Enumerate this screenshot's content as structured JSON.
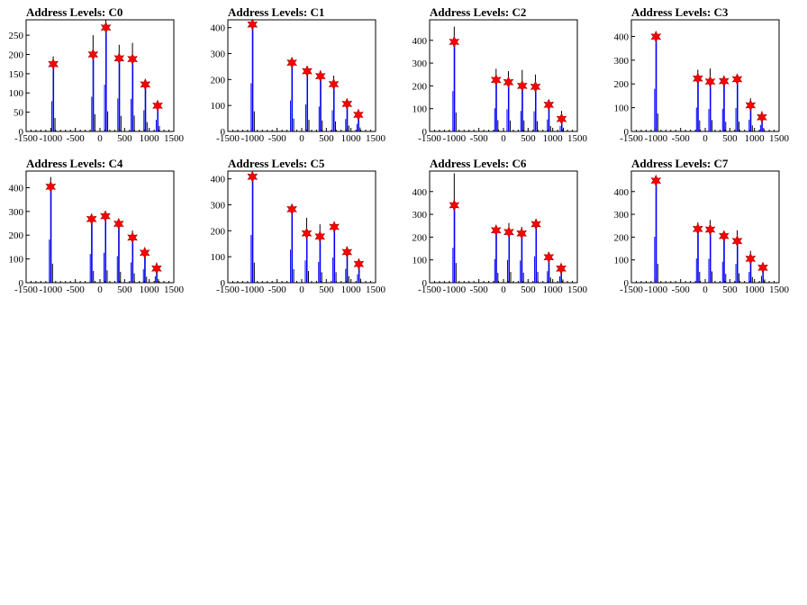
{
  "chart_data": [
    {
      "type": "bar",
      "title": "Address Levels: C0",
      "xlim": [
        -1500,
        1500
      ],
      "ylim": [
        0,
        290
      ],
      "xticks": [
        -1500,
        -1000,
        -500,
        0,
        500,
        1000,
        1500
      ],
      "xtick_labels": [
        "-1500",
        "-1000",
        "-500",
        "0",
        "500",
        "1000",
        "1500"
      ],
      "yticks": [
        0,
        50,
        100,
        150,
        200,
        250
      ],
      "ytick_labels": [
        "0",
        "50",
        "100",
        "150",
        "200",
        "250"
      ],
      "peaks": [
        {
          "x": -950,
          "y": 175
        },
        {
          "x": -140,
          "y": 200
        },
        {
          "x": 120,
          "y": 270
        },
        {
          "x": 390,
          "y": 190
        },
        {
          "x": 660,
          "y": 188
        },
        {
          "x": 920,
          "y": 122
        },
        {
          "x": 1170,
          "y": 67
        }
      ],
      "black_peaks": [
        -950,
        -140,
        120,
        390,
        660,
        920,
        1170
      ],
      "black_heights": [
        195,
        250,
        290,
        225,
        230,
        135,
        80
      ]
    },
    {
      "type": "bar",
      "title": "Address Levels: C1",
      "xlim": [
        -1500,
        1500
      ],
      "ylim": [
        0,
        430
      ],
      "xticks": [
        -1500,
        -1000,
        -500,
        0,
        500,
        1000,
        1500
      ],
      "xtick_labels": [
        "-1500",
        "-1000",
        "-500",
        "0",
        "500",
        "1000",
        "1500"
      ],
      "yticks": [
        0,
        100,
        200,
        300,
        400
      ],
      "ytick_labels": [
        "0",
        "100",
        "200",
        "300",
        "400"
      ],
      "peaks": [
        {
          "x": -1000,
          "y": 412
        },
        {
          "x": -200,
          "y": 265
        },
        {
          "x": 110,
          "y": 232
        },
        {
          "x": 380,
          "y": 213
        },
        {
          "x": 650,
          "y": 182
        },
        {
          "x": 920,
          "y": 106
        },
        {
          "x": 1150,
          "y": 64
        }
      ],
      "black_peaks": [
        -1000,
        -200,
        110,
        380,
        650,
        920,
        1150
      ],
      "black_heights": [
        430,
        275,
        250,
        235,
        215,
        125,
        85
      ]
    },
    {
      "type": "bar",
      "title": "Address Levels: C2",
      "xlim": [
        -1500,
        1500
      ],
      "ylim": [
        0,
        490
      ],
      "xticks": [
        -1500,
        -1000,
        -500,
        0,
        500,
        1000,
        1500
      ],
      "xtick_labels": [
        "-1500",
        "-1000",
        "-500",
        "0",
        "500",
        "1000",
        "1500"
      ],
      "yticks": [
        0,
        100,
        200,
        300,
        400
      ],
      "ytick_labels": [
        "0",
        "100",
        "200",
        "300",
        "400"
      ],
      "peaks": [
        {
          "x": -1000,
          "y": 393
        },
        {
          "x": -150,
          "y": 226
        },
        {
          "x": 100,
          "y": 216
        },
        {
          "x": 380,
          "y": 200
        },
        {
          "x": 650,
          "y": 196
        },
        {
          "x": 920,
          "y": 117
        },
        {
          "x": 1180,
          "y": 55
        }
      ],
      "black_peaks": [
        -1000,
        -150,
        100,
        380,
        650,
        920,
        1180
      ],
      "black_heights": [
        460,
        275,
        265,
        270,
        250,
        130,
        90
      ]
    },
    {
      "type": "bar",
      "title": "Address Levels: C3",
      "xlim": [
        -1500,
        1500
      ],
      "ylim": [
        0,
        470
      ],
      "xticks": [
        -1500,
        -1000,
        -500,
        0,
        500,
        1000,
        1500
      ],
      "xtick_labels": [
        "-1500",
        "-1000",
        "-500",
        "0",
        "500",
        "1000",
        "1500"
      ],
      "yticks": [
        0,
        100,
        200,
        300,
        400
      ],
      "ytick_labels": [
        "0",
        "100",
        "200",
        "300",
        "400"
      ],
      "peaks": [
        {
          "x": -1000,
          "y": 399
        },
        {
          "x": -150,
          "y": 223
        },
        {
          "x": 100,
          "y": 210
        },
        {
          "x": 380,
          "y": 212
        },
        {
          "x": 650,
          "y": 220
        },
        {
          "x": 920,
          "y": 110
        },
        {
          "x": 1150,
          "y": 60
        }
      ],
      "black_peaks": [
        -1000,
        -150,
        100,
        380,
        650,
        920,
        1150
      ],
      "black_heights": [
        420,
        260,
        265,
        225,
        230,
        140,
        85
      ]
    },
    {
      "type": "bar",
      "title": "Address Levels: C4",
      "xlim": [
        -1500,
        1500
      ],
      "ylim": [
        0,
        470
      ],
      "xticks": [
        -1500,
        -1000,
        -500,
        0,
        500,
        1000,
        1500
      ],
      "xtick_labels": [
        "-1500",
        "-1000",
        "-500",
        "0",
        "500",
        "1000",
        "1500"
      ],
      "yticks": [
        0,
        100,
        200,
        300,
        400
      ],
      "ytick_labels": [
        "0",
        "100",
        "200",
        "300",
        "400"
      ],
      "peaks": [
        {
          "x": -1000,
          "y": 404
        },
        {
          "x": -170,
          "y": 268
        },
        {
          "x": 110,
          "y": 280
        },
        {
          "x": 380,
          "y": 248
        },
        {
          "x": 660,
          "y": 190
        },
        {
          "x": 910,
          "y": 126
        },
        {
          "x": 1150,
          "y": 60
        }
      ],
      "black_peaks": [
        -1000,
        -170,
        110,
        380,
        660,
        910,
        1150
      ],
      "black_heights": [
        445,
        275,
        290,
        255,
        220,
        140,
        85
      ]
    },
    {
      "type": "bar",
      "title": "Address Levels: C5",
      "xlim": [
        -1500,
        1500
      ],
      "ylim": [
        0,
        430
      ],
      "xticks": [
        -1500,
        -1000,
        -500,
        0,
        500,
        1000,
        1500
      ],
      "xtick_labels": [
        "-1500",
        "-1000",
        "-500",
        "0",
        "500",
        "1000",
        "1500"
      ],
      "yticks": [
        0,
        100,
        200,
        300,
        400
      ],
      "ytick_labels": [
        "0",
        "100",
        "200",
        "300",
        "400"
      ],
      "peaks": [
        {
          "x": -1000,
          "y": 408
        },
        {
          "x": -200,
          "y": 283
        },
        {
          "x": 100,
          "y": 190
        },
        {
          "x": 370,
          "y": 178
        },
        {
          "x": 660,
          "y": 215
        },
        {
          "x": 920,
          "y": 118
        },
        {
          "x": 1160,
          "y": 72
        }
      ],
      "black_peaks": [
        -1000,
        -200,
        100,
        370,
        660,
        920,
        1160
      ],
      "black_heights": [
        430,
        290,
        250,
        225,
        225,
        140,
        85
      ]
    },
    {
      "type": "bar",
      "title": "Address Levels: C6",
      "xlim": [
        -1500,
        1500
      ],
      "ylim": [
        0,
        490
      ],
      "xticks": [
        -1500,
        -1000,
        -500,
        0,
        500,
        1000,
        1500
      ],
      "xtick_labels": [
        "-1500",
        "-1000",
        "-500",
        "0",
        "500",
        "1000",
        "1500"
      ],
      "yticks": [
        0,
        100,
        200,
        300,
        400
      ],
      "ytick_labels": [
        "0",
        "100",
        "200",
        "300",
        "400"
      ],
      "peaks": [
        {
          "x": -1000,
          "y": 340
        },
        {
          "x": -150,
          "y": 230
        },
        {
          "x": 110,
          "y": 222
        },
        {
          "x": 370,
          "y": 216
        },
        {
          "x": 660,
          "y": 257
        },
        {
          "x": 920,
          "y": 112
        },
        {
          "x": 1170,
          "y": 62
        }
      ],
      "black_peaks": [
        -1000,
        -150,
        110,
        370,
        660,
        920,
        1170
      ],
      "black_heights": [
        480,
        240,
        262,
        245,
        265,
        125,
        80
      ]
    },
    {
      "type": "bar",
      "title": "Address Levels: C7",
      "xlim": [
        -1500,
        1500
      ],
      "ylim": [
        0,
        490
      ],
      "xticks": [
        -1500,
        -1000,
        -500,
        0,
        500,
        1000,
        1500
      ],
      "xtick_labels": [
        "-1500",
        "-1000",
        "-500",
        "0",
        "500",
        "1000",
        "1500"
      ],
      "yticks": [
        0,
        100,
        200,
        300,
        400
      ],
      "ytick_labels": [
        "0",
        "100",
        "200",
        "300",
        "400"
      ],
      "peaks": [
        {
          "x": -1000,
          "y": 448
        },
        {
          "x": -150,
          "y": 236
        },
        {
          "x": 100,
          "y": 233
        },
        {
          "x": 380,
          "y": 205
        },
        {
          "x": 650,
          "y": 183
        },
        {
          "x": 920,
          "y": 105
        },
        {
          "x": 1170,
          "y": 66
        }
      ],
      "black_peaks": [
        -1000,
        -150,
        100,
        380,
        650,
        920,
        1170
      ],
      "black_heights": [
        460,
        265,
        275,
        215,
        230,
        140,
        80
      ]
    }
  ],
  "colors": {
    "histogram_black": "#000000",
    "histogram_blue": "#0000ff",
    "marker_red": "#ff0000",
    "frame": "#000000",
    "background": "#ffffff"
  }
}
